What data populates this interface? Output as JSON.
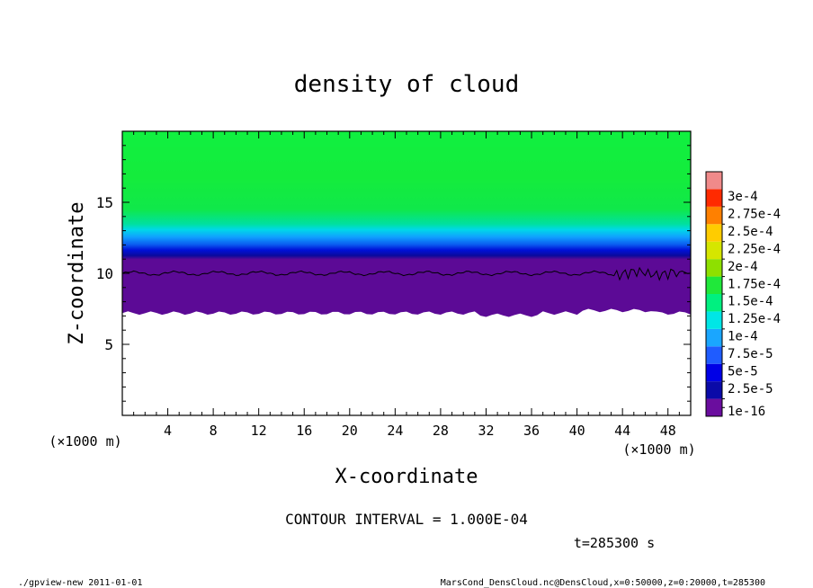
{
  "chart_data": {
    "type": "heatmap",
    "title": "density of cloud",
    "xlabel": "X-coordinate",
    "ylabel": "Z-coordinate",
    "x_unit": "(×1000 m)",
    "y_unit": "(×1000 m)",
    "xlim": [
      0,
      50
    ],
    "ylim": [
      0,
      20
    ],
    "x_ticks": [
      4,
      8,
      12,
      16,
      20,
      24,
      28,
      32,
      36,
      40,
      44,
      48
    ],
    "y_ticks": [
      5,
      10,
      15
    ],
    "colorbar": {
      "levels": [
        "1e-16",
        "2.5e-5",
        "5e-5",
        "7.5e-5",
        "1e-4",
        "1.25e-4",
        "1.5e-4",
        "1.75e-4",
        "2e-4",
        "2.25e-4",
        "2.5e-4",
        "2.75e-4",
        "3e-4"
      ],
      "colors": [
        "#6a0d9e",
        "#0a0aa8",
        "#0000e6",
        "#1f5cff",
        "#1aa6ff",
        "#00e6e6",
        "#00f080",
        "#20e83a",
        "#8ee000",
        "#d6e600",
        "#ffcc00",
        "#ff8000",
        "#ff2a00",
        "#f08a8a"
      ]
    },
    "contour_interval": "CONTOUR INTERVAL = 1.000E-04",
    "time_label": "t=285300 s",
    "cloud_top_km": 10.0,
    "cloud_base_km": 7.2,
    "upper_region_density": 0.00015
  },
  "footer": {
    "left": "./gpview-new  2011-01-01",
    "right": "MarsCond_DensCloud.nc@DensCloud,x=0:50000,z=0:20000,t=285300"
  }
}
